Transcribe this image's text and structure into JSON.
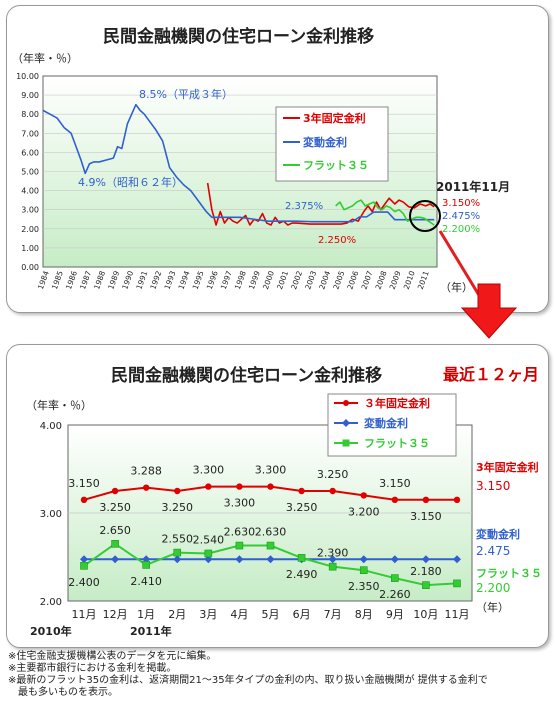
{
  "top_chart": {
    "title": "民間金融機関の住宅ローン金利推移",
    "ylabel": "（年率・％）",
    "xlabel": "（年）",
    "callout": "2011年11月",
    "ann_85": "8.5%（平成３年）",
    "ann_49": "4.9%（昭和６２年）",
    "ann_2375": "2.375%",
    "ann_2250": "2.250%",
    "end_fixed3": "3.150%",
    "end_variable": "2.475%",
    "end_flat35": "2.200%"
  },
  "bottom_chart": {
    "title": "民間金融機関の住宅ローン金利推移",
    "title_suffix": "最近１２ヶ月",
    "ylabel": "（年率・％）",
    "xlabel": "（年）",
    "year_2010": "2010年",
    "year_2011": "2011年",
    "label_fixed3": "3年固定金利",
    "label_variable": "変動金利",
    "label_flat35": "フラット３５",
    "end_fixed3": "3.150",
    "end_variable": "2.475",
    "end_flat35": "2.200"
  },
  "colors": {
    "fixed3": "#e00000",
    "variable": "#3060d0",
    "flat35": "#33cc33"
  },
  "notes": [
    "※住宅金融支援機構公表のデータを元に編集。",
    "※主要都市銀行における金利を掲載。",
    "※最新のフラット35の金利は、返済期間21～35年タイプの金利の内、取り扱い金融機関が 提供する金利で",
    "　最も多いものを表示。"
  ],
  "chart_data": [
    {
      "type": "line",
      "title": "民間金融機関の住宅ローン金利推移",
      "ylabel": "（年率・％）",
      "xlabel": "（年）",
      "ylim": [
        0,
        10
      ],
      "yticks": [
        "0.00",
        "1.00",
        "2.00",
        "3.00",
        "4.00",
        "5.00",
        "6.00",
        "7.00",
        "8.00",
        "9.00",
        "10.00"
      ],
      "xlim": [
        1984,
        2012
      ],
      "xticks": [
        "1984",
        "1985",
        "1986",
        "1987",
        "1988",
        "1989",
        "1990",
        "1991",
        "1992",
        "1993",
        "1994",
        "1995",
        "1996",
        "1997",
        "1998",
        "1999",
        "2000",
        "2001",
        "2002",
        "2003",
        "2004",
        "2005",
        "2006",
        "2007",
        "2008",
        "2009",
        "2010",
        "2011"
      ],
      "legend_position": "top-right",
      "series": [
        {
          "name": "3年固定金利",
          "color": "#e00000",
          "x": [
            1995.7,
            1996.0,
            1996.3,
            1996.6,
            1996.9,
            1997.2,
            1997.5,
            1997.8,
            1998.1,
            1998.4,
            1998.7,
            1999.0,
            1999.3,
            1999.6,
            1999.9,
            2000.2,
            2000.5,
            2000.8,
            2001.1,
            2001.4,
            2001.7,
            2002.0,
            2003.0,
            2004.0,
            2004.7,
            2005.2,
            2005.6,
            2006.0,
            2006.4,
            2006.8,
            2007.1,
            2007.4,
            2007.7,
            2008.0,
            2008.3,
            2008.6,
            2009.0,
            2009.3,
            2009.6,
            2010.0,
            2010.4,
            2010.8,
            2011.2,
            2011.5,
            2011.8
          ],
          "y": [
            4.4,
            3.0,
            2.2,
            2.9,
            2.3,
            2.6,
            2.4,
            2.3,
            2.5,
            2.7,
            2.2,
            2.5,
            2.4,
            2.8,
            2.3,
            2.2,
            2.6,
            2.3,
            2.4,
            2.2,
            2.3,
            2.3,
            2.25,
            2.25,
            2.25,
            2.25,
            2.3,
            2.5,
            2.4,
            2.9,
            3.2,
            2.9,
            3.4,
            3.0,
            3.3,
            3.6,
            3.3,
            3.5,
            3.4,
            3.15,
            3.1,
            3.3,
            3.2,
            3.3,
            3.15
          ]
        },
        {
          "name": "変動金利",
          "color": "#3060d0",
          "x": [
            1984.0,
            1984.5,
            1985.0,
            1985.5,
            1986.0,
            1986.3,
            1986.7,
            1987.0,
            1987.3,
            1987.6,
            1988.0,
            1988.5,
            1989.0,
            1989.3,
            1989.6,
            1990.0,
            1990.3,
            1990.6,
            1990.9,
            1991.2,
            1991.5,
            1992.0,
            1992.5,
            1993.0,
            1993.5,
            1994.0,
            1994.5,
            1995.0,
            1995.3,
            1995.6,
            1996.0,
            1997.0,
            1998.0,
            1999.0,
            2000.0,
            2001.0,
            2001.5,
            2002.0,
            2003.0,
            2004.0,
            2005.0,
            2006.0,
            2006.5,
            2007.0,
            2007.5,
            2008.0,
            2008.5,
            2009.0,
            2009.5,
            2010.0,
            2010.5,
            2011.0,
            2011.8
          ],
          "y": [
            8.2,
            8.0,
            7.8,
            7.3,
            7.0,
            6.4,
            5.6,
            4.9,
            5.4,
            5.5,
            5.5,
            5.6,
            5.7,
            6.3,
            6.2,
            7.5,
            8.0,
            8.5,
            8.2,
            8.0,
            7.7,
            7.2,
            6.6,
            5.2,
            4.7,
            4.3,
            4.0,
            3.5,
            3.2,
            2.9,
            2.6,
            2.6,
            2.6,
            2.5,
            2.4,
            2.4,
            2.4,
            2.4,
            2.375,
            2.375,
            2.375,
            2.375,
            2.625,
            2.625,
            2.875,
            2.875,
            2.875,
            2.475,
            2.475,
            2.475,
            2.475,
            2.475,
            2.475
          ]
        },
        {
          "name": "フラット３５",
          "color": "#33cc33",
          "x": [
            2004.8,
            2005.1,
            2005.4,
            2005.7,
            2006.0,
            2006.3,
            2006.6,
            2006.9,
            2007.2,
            2007.5,
            2007.8,
            2008.1,
            2008.4,
            2008.7,
            2009.0,
            2009.3,
            2009.6,
            2009.9,
            2010.2,
            2010.5,
            2010.8,
            2011.1,
            2011.4,
            2011.8
          ],
          "y": [
            3.2,
            3.4,
            3.0,
            3.1,
            3.2,
            3.4,
            3.5,
            3.2,
            3.3,
            3.4,
            3.1,
            3.0,
            3.2,
            3.1,
            2.9,
            3.0,
            2.8,
            2.4,
            2.5,
            2.6,
            2.6,
            2.55,
            2.4,
            2.2
          ]
        }
      ]
    },
    {
      "type": "line",
      "title": "民間金融機関の住宅ローン金利推移 最近１２ヶ月",
      "ylabel": "（年率・％）",
      "xlabel": "（年）",
      "ylim": [
        2.0,
        4.0
      ],
      "yticks": [
        "2.00",
        "3.00",
        "4.00"
      ],
      "categories": [
        "11月",
        "12月",
        "1月",
        "2月",
        "3月",
        "4月",
        "5月",
        "6月",
        "7月",
        "8月",
        "9月",
        "10月",
        "11月"
      ],
      "legend_position": "top-right",
      "series": [
        {
          "name": "３年固定金利",
          "color": "#e00000",
          "values": [
            3.15,
            3.25,
            3.288,
            3.25,
            3.3,
            3.3,
            3.3,
            3.25,
            3.25,
            3.2,
            3.15,
            3.15,
            3.15
          ],
          "labels": [
            "3.150",
            "3.250",
            "3.288",
            "3.250",
            "3.300",
            "3.300",
            "3.300",
            "3.250",
            "3.250",
            "3.200",
            "3.150",
            "3.150",
            ""
          ]
        },
        {
          "name": "変動金利",
          "color": "#3060d0",
          "values": [
            2.475,
            2.475,
            2.475,
            2.475,
            2.475,
            2.475,
            2.475,
            2.475,
            2.475,
            2.475,
            2.475,
            2.475,
            2.475
          ]
        },
        {
          "name": "フラット３５",
          "color": "#33cc33",
          "values": [
            2.4,
            2.65,
            2.41,
            2.55,
            2.54,
            2.63,
            2.63,
            2.49,
            2.39,
            2.35,
            2.26,
            2.18,
            2.2
          ],
          "labels": [
            "2.400",
            "2.650",
            "2.410",
            "2.550",
            "2.540",
            "2.630",
            "2.630",
            "2.490",
            "2.390",
            "2.350",
            "2.260",
            "2.180",
            ""
          ]
        }
      ]
    }
  ]
}
